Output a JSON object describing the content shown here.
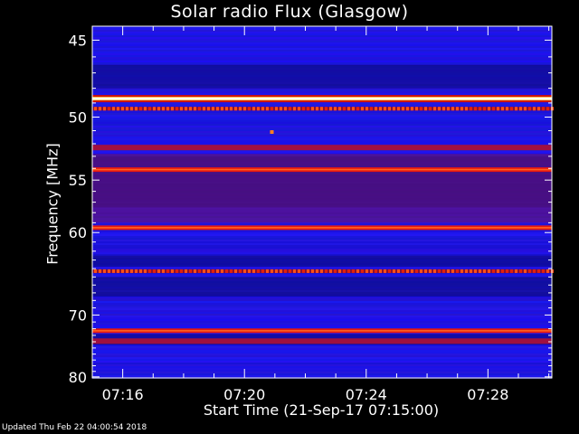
{
  "chart_data": {
    "type": "heatmap",
    "title": "Solar radio Flux (Glasgow)",
    "xlabel": "Start Time (21-Sep-17 07:15:00)",
    "ylabel": "Frequency [MHz]",
    "x_ticks": [
      "07:16",
      "07:20",
      "07:24",
      "07:28"
    ],
    "x_tick_minutes": [
      1,
      5,
      9,
      13
    ],
    "xlim_minutes": [
      0,
      15.1
    ],
    "y_ticks": [
      45,
      50,
      55,
      60,
      70,
      80
    ],
    "ylim": [
      44.2,
      80.2
    ],
    "y_scale": "reciprocal",
    "colormap": "blue-red-yellow-white",
    "background_color": "#1a14e6",
    "emission_bands": [
      {
        "freq_mhz": 48.7,
        "intensity": "saturated"
      },
      {
        "freq_mhz": 49.4,
        "intensity": "pulsed"
      },
      {
        "freq_mhz": 52.3,
        "intensity": "medium"
      },
      {
        "freq_mhz": 54.1,
        "intensity": "high"
      },
      {
        "freq_mhz": 59.5,
        "intensity": "high"
      },
      {
        "freq_mhz": 64.3,
        "intensity": "pulsed"
      },
      {
        "freq_mhz": 72.3,
        "intensity": "high"
      },
      {
        "freq_mhz": 73.9,
        "intensity": "medium"
      }
    ],
    "dark_regions_mhz": [
      [
        46.5,
        48.0
      ],
      [
        53.0,
        57.5
      ],
      [
        62.5,
        63.8
      ],
      [
        65.0,
        67.5
      ],
      [
        72.8,
        74.5
      ]
    ]
  },
  "footer": {
    "updated": "Updated Thu Feb 22 04:00:54 2018"
  }
}
